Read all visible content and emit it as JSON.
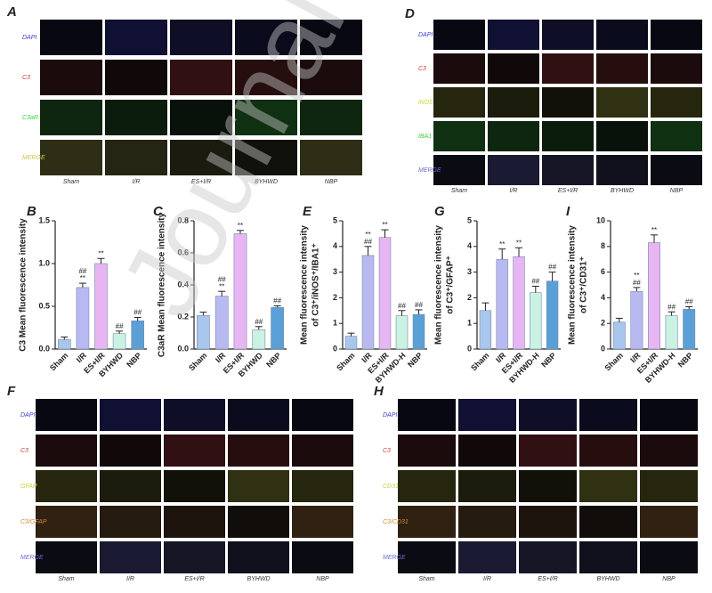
{
  "image_panels": [
    {
      "panel": "A",
      "rows": [
        "DAPI",
        "C3",
        "C3aR",
        "MERGE"
      ],
      "row_colors": [
        "#3a3ad0",
        "#d03a3a",
        "#3ad03a",
        "#c8c850"
      ],
      "columns": [
        "Sham",
        "I/R",
        "ES+I/R",
        "BYHWD",
        "NBP"
      ]
    },
    {
      "panel": "D",
      "rows": [
        "DAPI",
        "C3",
        "iNOS",
        "IBA1",
        "MERGE"
      ],
      "row_colors": [
        "#3a3ad0",
        "#d03a3a",
        "#d0d03a",
        "#3ad03a",
        "#6a6ad0"
      ],
      "columns": [
        "Sham",
        "I/R",
        "ES+I/R",
        "BYHWD",
        "NBP"
      ]
    },
    {
      "panel": "F",
      "rows": [
        "DAPI",
        "C3",
        "GFAP",
        "C3/GFAP",
        "MERGE"
      ],
      "row_colors": [
        "#3a3ad0",
        "#d03a3a",
        "#d0d03a",
        "#d08a3a",
        "#6a6ad0"
      ],
      "columns": [
        "Sham",
        "I/R",
        "ES+I/R",
        "BYHWD",
        "NBP"
      ]
    },
    {
      "panel": "H",
      "rows": [
        "DAPI",
        "C3",
        "CD31",
        "C3/CD31",
        "MERGE"
      ],
      "row_colors": [
        "#3a3ad0",
        "#d03a3a",
        "#d0d03a",
        "#d08a3a",
        "#6a6ad0"
      ],
      "columns": [
        "Sham",
        "I/R",
        "ES+I/R",
        "BYHWD",
        "NBP"
      ]
    }
  ],
  "chart_data": [
    {
      "type": "bar",
      "panel": "B",
      "ylabel": [
        "C3 Mean fluorescence intensity"
      ],
      "categories": [
        "Sham",
        "I/R",
        "ES+I/R",
        "BYHWD",
        "NBP"
      ],
      "values": [
        0.11,
        0.72,
        1.0,
        0.18,
        0.33
      ],
      "errors": [
        0.03,
        0.05,
        0.06,
        0.03,
        0.04
      ],
      "markers": [
        [],
        [
          "##",
          "**"
        ],
        [
          "**"
        ],
        [
          "##"
        ],
        [
          "##"
        ]
      ],
      "colors": [
        "#a9c6ec",
        "#b9b9f2",
        "#e7b6f2",
        "#c9f2e2",
        "#5aa0d6"
      ],
      "ylim": [
        0,
        1.5
      ],
      "yticks": [
        {
          "value": 0,
          "label": "0.0"
        },
        {
          "value": 0.5,
          "label": "0.5"
        },
        {
          "value": 1,
          "label": "1.0"
        },
        {
          "value": 1.5,
          "label": "1.5"
        }
      ]
    },
    {
      "type": "bar",
      "panel": "C",
      "ylabel": [
        "C3aR Mean fluorescence intensity"
      ],
      "categories": [
        "Sham",
        "I/R",
        "ES+I/R",
        "BYHWD",
        "NBP"
      ],
      "values": [
        0.21,
        0.33,
        0.72,
        0.12,
        0.26
      ],
      "errors": [
        0.02,
        0.03,
        0.02,
        0.02,
        0.01
      ],
      "markers": [
        [],
        [
          "##",
          "**"
        ],
        [
          "**"
        ],
        [
          "##"
        ],
        [
          "##"
        ]
      ],
      "colors": [
        "#a9c6ec",
        "#b9b9f2",
        "#e7b6f2",
        "#c9f2e2",
        "#5aa0d6"
      ],
      "ylim": [
        0,
        0.8
      ],
      "yticks": [
        {
          "value": 0,
          "label": "0.0"
        },
        0.2,
        0.4,
        0.6,
        0.8
      ]
    },
    {
      "type": "bar",
      "panel": "E",
      "ylabel": [
        "Mean fluorescence intensity",
        "of C3⁺/iNOS⁺/IBA1⁺"
      ],
      "categories": [
        "Sham",
        "I/R",
        "ES+I/R",
        "BYHWD-H",
        "NBP"
      ],
      "values": [
        0.5,
        3.65,
        4.35,
        1.3,
        1.35
      ],
      "errors": [
        0.12,
        0.35,
        0.3,
        0.2,
        0.18
      ],
      "markers": [
        [],
        [
          "**",
          "##"
        ],
        [
          "**"
        ],
        [
          "##"
        ],
        [
          "##"
        ]
      ],
      "colors": [
        "#a9c6ec",
        "#b9b9f2",
        "#e7b6f2",
        "#c9f2e2",
        "#5aa0d6"
      ],
      "ylim": [
        0,
        5
      ],
      "yticks": [
        0,
        1,
        2,
        3,
        4,
        5
      ]
    },
    {
      "type": "bar",
      "panel": "G",
      "ylabel": [
        "Mean fluorescence intensity",
        "of C3⁺/GFAP⁺"
      ],
      "categories": [
        "Sham",
        "I/R",
        "ES+I/R",
        "BYHWD-H",
        "NBP"
      ],
      "values": [
        1.5,
        3.5,
        3.6,
        2.2,
        2.65
      ],
      "errors": [
        0.3,
        0.4,
        0.35,
        0.25,
        0.35
      ],
      "markers": [
        [],
        [
          "**"
        ],
        [
          "**"
        ],
        [
          "##"
        ],
        [
          "##"
        ]
      ],
      "colors": [
        "#a9c6ec",
        "#b9b9f2",
        "#e7b6f2",
        "#c9f2e2",
        "#5aa0d6"
      ],
      "ylim": [
        0,
        5
      ],
      "yticks": [
        0,
        1,
        2,
        3,
        4,
        5
      ]
    },
    {
      "type": "bar",
      "panel": "I",
      "ylabel": [
        "Mean fluorescence intensity",
        "of C3⁺/CD31⁺"
      ],
      "categories": [
        "Sham",
        "I/R",
        "ES+I/R",
        "BYHWD-H",
        "NBP"
      ],
      "values": [
        2.1,
        4.5,
        8.3,
        2.6,
        3.1
      ],
      "errors": [
        0.3,
        0.3,
        0.6,
        0.3,
        0.2
      ],
      "markers": [
        [],
        [
          "**",
          "##"
        ],
        [
          "**"
        ],
        [
          "##"
        ],
        [
          "##"
        ]
      ],
      "colors": [
        "#a9c6ec",
        "#b9b9f2",
        "#e7b6f2",
        "#c9f2e2",
        "#5aa0d6"
      ],
      "ylim": [
        0,
        10
      ],
      "yticks": [
        0,
        2,
        4,
        6,
        8,
        10
      ]
    }
  ],
  "watermark": "Journal"
}
